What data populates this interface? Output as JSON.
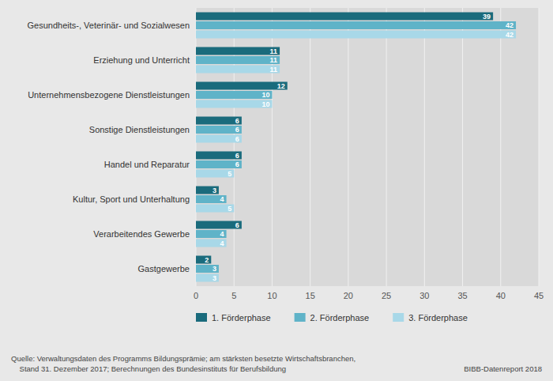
{
  "chart_data": {
    "type": "bar",
    "orientation": "horizontal",
    "categories": [
      "Gesundheits-, Veterinär- und Sozialwesen",
      "Erziehung und Unterricht",
      "Unternehmensbezogene Dienstleistungen",
      "Sonstige Dienstleistungen",
      "Handel und Reparatur",
      "Kultur, Sport und Unterhaltung",
      "Verarbeitendes Gewerbe",
      "Gastgewerbe"
    ],
    "series": [
      {
        "name": "1. Förderphase",
        "color": "#1a6b7c",
        "values": [
          39,
          11,
          12,
          6,
          6,
          3,
          6,
          2
        ]
      },
      {
        "name": "2. Förderphase",
        "color": "#5fb3c8",
        "values": [
          42,
          11,
          10,
          6,
          6,
          4,
          4,
          3
        ]
      },
      {
        "name": "3. Förderphase",
        "color": "#a8d8e8",
        "values": [
          42,
          11,
          10,
          6,
          5,
          5,
          4,
          3
        ]
      }
    ],
    "xlim": [
      0,
      45
    ],
    "xticks": [
      0,
      5,
      10,
      15,
      20,
      25,
      30,
      35,
      40,
      45
    ],
    "grid": true,
    "legend": "bottom",
    "data_labels": true,
    "annotations": [
      "Quelle: Verwaltungsdaten des Programms Bildungsprämie; am stärksten besetzte Wirtschaftsbranchen,\n    Stand 31. Dezember 2017; Berechnungen des Bundesinstituts für Berufsbildung",
      "BIBB-Datenreport 2018"
    ]
  }
}
